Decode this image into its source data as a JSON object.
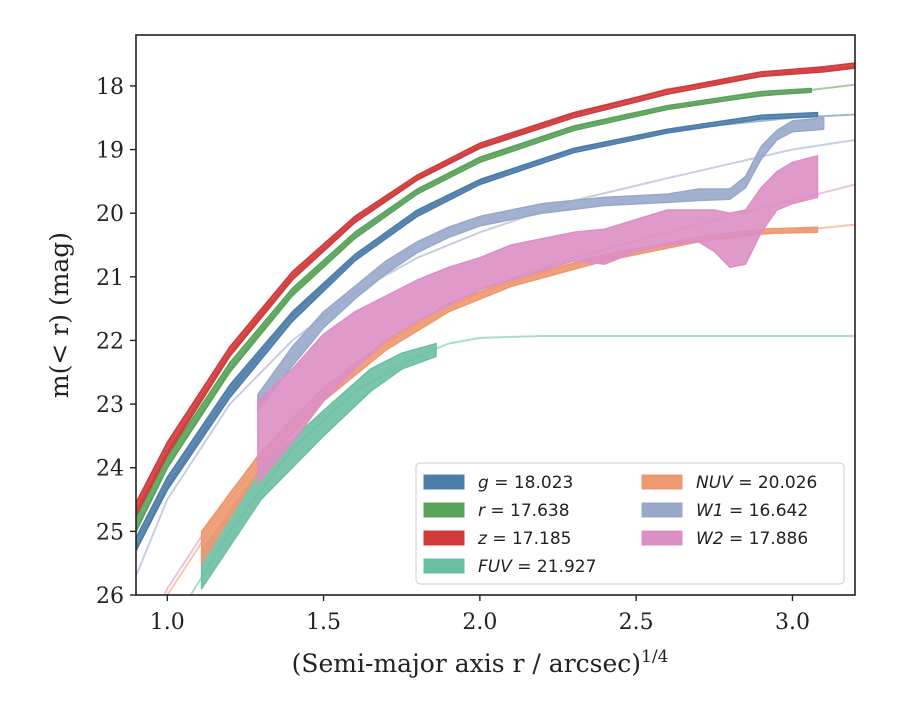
{
  "chart_data": {
    "type": "line",
    "xlabel": "(Semi-major axis r / arcsec)",
    "xlabel_sup": "1/4",
    "ylabel": "m(< r) (mag)",
    "xlim": [
      0.9,
      3.2
    ],
    "ylim": [
      26,
      17.2
    ],
    "y_inverted": true,
    "xticks": [
      1.0,
      1.5,
      2.0,
      2.5,
      3.0
    ],
    "xtick_labels": [
      "1.0",
      "1.5",
      "2.0",
      "2.5",
      "3.0"
    ],
    "yticks": [
      18,
      19,
      20,
      21,
      22,
      23,
      24,
      25,
      26
    ],
    "ytick_labels": [
      "18",
      "19",
      "20",
      "21",
      "22",
      "23",
      "24",
      "25",
      "26"
    ],
    "grid": false,
    "legend_position": "bottom-right",
    "legend_columns": 2,
    "series": [
      {
        "name": "g = 18.023",
        "color": "#4c7ca8",
        "model": [
          [
            0.9,
            25.3
          ],
          [
            1.0,
            24.3
          ],
          [
            1.2,
            22.8
          ],
          [
            1.4,
            21.6
          ],
          [
            1.6,
            20.7
          ],
          [
            1.8,
            20.0
          ],
          [
            2.0,
            19.5
          ],
          [
            2.3,
            19.0
          ],
          [
            2.6,
            18.7
          ],
          [
            3.0,
            18.5
          ],
          [
            3.2,
            18.45
          ]
        ],
        "band": [
          [
            0.9,
            25.3,
            25.1
          ],
          [
            1.0,
            24.35,
            24.15
          ],
          [
            1.2,
            22.9,
            22.7
          ],
          [
            1.4,
            21.7,
            21.55
          ],
          [
            1.6,
            20.75,
            20.65
          ],
          [
            1.8,
            20.05,
            19.95
          ],
          [
            2.0,
            19.55,
            19.47
          ],
          [
            2.3,
            19.05,
            18.98
          ],
          [
            2.6,
            18.74,
            18.68
          ],
          [
            2.9,
            18.52,
            18.46
          ],
          [
            3.08,
            18.48,
            18.42
          ]
        ]
      },
      {
        "name": "r = 17.638",
        "color": "#5aa35a",
        "model": [
          [
            0.9,
            25.0
          ],
          [
            1.0,
            24.0
          ],
          [
            1.2,
            22.45
          ],
          [
            1.4,
            21.25
          ],
          [
            1.6,
            20.35
          ],
          [
            1.8,
            19.65
          ],
          [
            2.0,
            19.15
          ],
          [
            2.3,
            18.65
          ],
          [
            2.6,
            18.33
          ],
          [
            3.0,
            18.1
          ],
          [
            3.2,
            17.98
          ]
        ],
        "band": [
          [
            0.9,
            25.0,
            24.8
          ],
          [
            1.0,
            24.0,
            23.82
          ],
          [
            1.2,
            22.5,
            22.35
          ],
          [
            1.4,
            21.3,
            21.18
          ],
          [
            1.6,
            20.4,
            20.3
          ],
          [
            1.8,
            19.7,
            19.62
          ],
          [
            2.0,
            19.2,
            19.12
          ],
          [
            2.3,
            18.7,
            18.63
          ],
          [
            2.6,
            18.37,
            18.31
          ],
          [
            2.9,
            18.15,
            18.09
          ],
          [
            3.06,
            18.1,
            18.04
          ]
        ]
      },
      {
        "name": "z = 17.185",
        "color": "#d03a3a",
        "model": [
          [
            0.9,
            24.7
          ],
          [
            1.0,
            23.75
          ],
          [
            1.2,
            22.2
          ],
          [
            1.4,
            21.0
          ],
          [
            1.6,
            20.1
          ],
          [
            1.8,
            19.45
          ],
          [
            2.0,
            18.95
          ],
          [
            2.3,
            18.45
          ],
          [
            2.6,
            18.05
          ],
          [
            3.0,
            17.78
          ],
          [
            3.2,
            17.7
          ]
        ],
        "band": [
          [
            0.9,
            24.75,
            24.55
          ],
          [
            1.0,
            23.8,
            23.6
          ],
          [
            1.2,
            22.25,
            22.1
          ],
          [
            1.4,
            21.05,
            20.92
          ],
          [
            1.6,
            20.15,
            20.05
          ],
          [
            1.8,
            19.48,
            19.4
          ],
          [
            2.0,
            18.98,
            18.9
          ],
          [
            2.3,
            18.5,
            18.42
          ],
          [
            2.6,
            18.13,
            18.06
          ],
          [
            2.9,
            17.85,
            17.78
          ],
          [
            3.1,
            17.78,
            17.7
          ],
          [
            3.2,
            17.72,
            17.64
          ]
        ]
      },
      {
        "name": "FUV = 21.927",
        "color": "#6bbfa3",
        "model": [
          [
            0.9,
            27.5
          ],
          [
            1.0,
            26.6
          ],
          [
            1.2,
            25.0
          ],
          [
            1.4,
            23.7
          ],
          [
            1.6,
            22.8
          ],
          [
            1.8,
            22.25
          ],
          [
            1.9,
            22.05
          ],
          [
            2.0,
            21.96
          ],
          [
            2.2,
            21.93
          ],
          [
            2.6,
            21.93
          ],
          [
            3.2,
            21.93
          ]
        ],
        "band": [
          [
            1.11,
            25.9,
            25.3
          ],
          [
            1.3,
            24.5,
            24.0
          ],
          [
            1.5,
            23.5,
            23.1
          ],
          [
            1.65,
            22.8,
            22.45
          ],
          [
            1.75,
            22.45,
            22.2
          ],
          [
            1.86,
            22.25,
            22.05
          ]
        ]
      },
      {
        "name": "NUV = 20.026",
        "color": "#ee9870",
        "model": [
          [
            0.9,
            27.0
          ],
          [
            1.0,
            26.0
          ],
          [
            1.2,
            24.5
          ],
          [
            1.4,
            23.3
          ],
          [
            1.6,
            22.4
          ],
          [
            1.8,
            21.75
          ],
          [
            2.0,
            21.25
          ],
          [
            2.3,
            20.8
          ],
          [
            2.6,
            20.5
          ],
          [
            3.0,
            20.28
          ],
          [
            3.2,
            20.18
          ]
        ],
        "band": [
          [
            1.11,
            25.5,
            25.0
          ],
          [
            1.3,
            24.0,
            23.75
          ],
          [
            1.5,
            22.95,
            22.75
          ],
          [
            1.7,
            22.15,
            22.0
          ],
          [
            1.9,
            21.55,
            21.42
          ],
          [
            2.1,
            21.15,
            21.05
          ],
          [
            2.4,
            20.75,
            20.65
          ],
          [
            2.7,
            20.45,
            20.38
          ],
          [
            2.9,
            20.32,
            20.25
          ],
          [
            3.08,
            20.3,
            20.22
          ]
        ]
      },
      {
        "name": "W1 = 16.642",
        "color": "#97a8ca",
        "model": [
          [
            0.9,
            25.7
          ],
          [
            1.0,
            24.5
          ],
          [
            1.2,
            23.0
          ],
          [
            1.4,
            22.0
          ],
          [
            1.6,
            21.25
          ],
          [
            1.8,
            20.7
          ],
          [
            2.0,
            20.3
          ],
          [
            2.3,
            19.8
          ],
          [
            2.6,
            19.45
          ],
          [
            3.0,
            19.0
          ],
          [
            3.2,
            18.85
          ]
        ],
        "band": [
          [
            1.29,
            23.1,
            22.85
          ],
          [
            1.4,
            22.4,
            22.1
          ],
          [
            1.5,
            21.8,
            21.55
          ],
          [
            1.6,
            21.35,
            21.15
          ],
          [
            1.7,
            20.95,
            20.75
          ],
          [
            1.8,
            20.62,
            20.45
          ],
          [
            1.9,
            20.38,
            20.22
          ],
          [
            2.0,
            20.2,
            20.05
          ],
          [
            2.2,
            20.0,
            19.85
          ],
          [
            2.4,
            19.88,
            19.75
          ],
          [
            2.6,
            19.83,
            19.7
          ],
          [
            2.7,
            19.8,
            19.62
          ],
          [
            2.8,
            19.78,
            19.62
          ],
          [
            2.85,
            19.6,
            19.42
          ],
          [
            2.9,
            19.15,
            18.95
          ],
          [
            2.95,
            18.85,
            18.7
          ],
          [
            3.0,
            18.72,
            18.55
          ],
          [
            3.1,
            18.68,
            18.5
          ]
        ]
      },
      {
        "name": "W2 = 17.886",
        "color": "#dc8fc4",
        "model": [
          [
            0.9,
            27.0
          ],
          [
            1.0,
            25.9
          ],
          [
            1.2,
            24.4
          ],
          [
            1.4,
            23.2
          ],
          [
            1.6,
            22.35
          ],
          [
            1.8,
            21.7
          ],
          [
            2.0,
            21.2
          ],
          [
            2.3,
            20.7
          ],
          [
            2.6,
            20.3
          ],
          [
            3.0,
            19.8
          ],
          [
            3.2,
            19.55
          ]
        ],
        "band": [
          [
            1.29,
            24.25,
            22.95
          ],
          [
            1.4,
            23.6,
            22.45
          ],
          [
            1.5,
            22.95,
            21.9
          ],
          [
            1.6,
            22.45,
            21.55
          ],
          [
            1.7,
            22.0,
            21.3
          ],
          [
            1.8,
            21.7,
            21.05
          ],
          [
            1.9,
            21.45,
            20.85
          ],
          [
            2.0,
            21.2,
            20.7
          ],
          [
            2.1,
            21.05,
            20.5
          ],
          [
            2.2,
            20.9,
            20.4
          ],
          [
            2.3,
            20.75,
            20.3
          ],
          [
            2.4,
            20.8,
            20.25
          ],
          [
            2.5,
            20.6,
            20.1
          ],
          [
            2.6,
            20.5,
            19.95
          ],
          [
            2.7,
            20.45,
            19.95
          ],
          [
            2.75,
            20.6,
            19.95
          ],
          [
            2.8,
            20.85,
            20.0
          ],
          [
            2.85,
            20.8,
            19.95
          ],
          [
            2.9,
            20.3,
            19.6
          ],
          [
            2.95,
            19.95,
            19.35
          ],
          [
            3.0,
            19.85,
            19.2
          ],
          [
            3.08,
            19.75,
            19.1
          ]
        ]
      }
    ]
  }
}
